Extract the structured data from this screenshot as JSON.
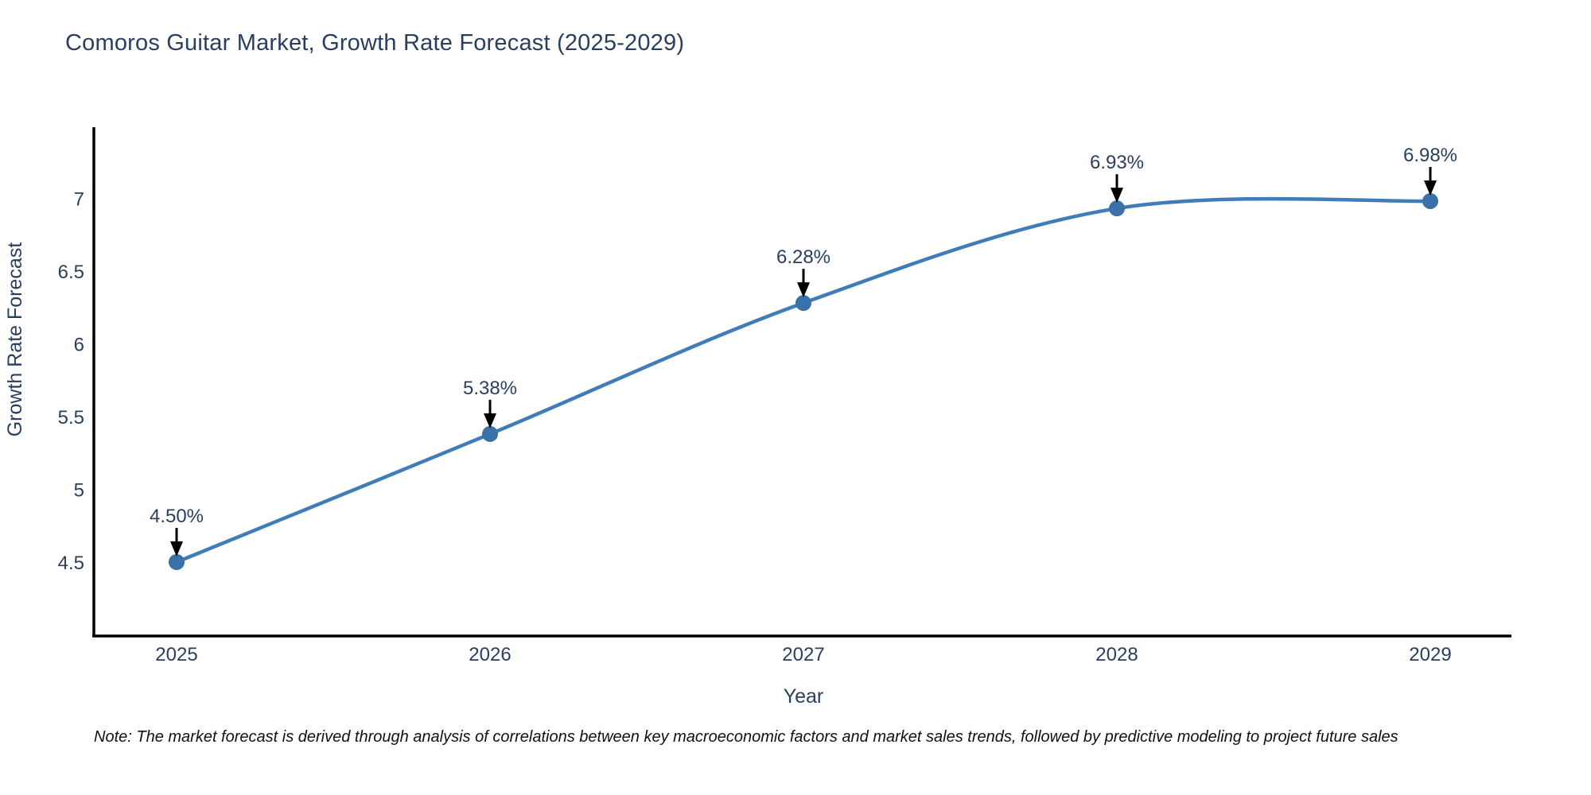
{
  "page": {
    "title": "Comoros Guitar Market, Growth Rate Forecast (2025-2029)",
    "note": "Note: The market forecast is derived through analysis of correlations between key macroeconomic factors and market sales trends, followed by predictive modeling to project future sales"
  },
  "chart_data": {
    "type": "line",
    "title": "Comoros Guitar Market, Growth Rate Forecast (2025-2029)",
    "xlabel": "Year",
    "ylabel": "Growth Rate Forecast",
    "categories": [
      "2025",
      "2026",
      "2027",
      "2028",
      "2029"
    ],
    "values": [
      4.5,
      5.38,
      6.28,
      6.93,
      6.98
    ],
    "point_labels": [
      "4.50%",
      "5.38%",
      "6.28%",
      "6.93%",
      "6.98%"
    ],
    "yticks": [
      "4.5",
      "5",
      "5.5",
      "6",
      "6.5",
      "7"
    ],
    "ytick_values": [
      4.5,
      5,
      5.5,
      6,
      6.5,
      7
    ],
    "ylim": [
      4.0,
      7.5
    ],
    "grid": false,
    "legend": "none",
    "line_shape": "spline",
    "colors": {
      "line": "#3f7cb9",
      "marker": "#3a71aa",
      "annotation_arrow": "#000000",
      "text": "#2a3f5f",
      "axis_line": "#000000"
    }
  }
}
